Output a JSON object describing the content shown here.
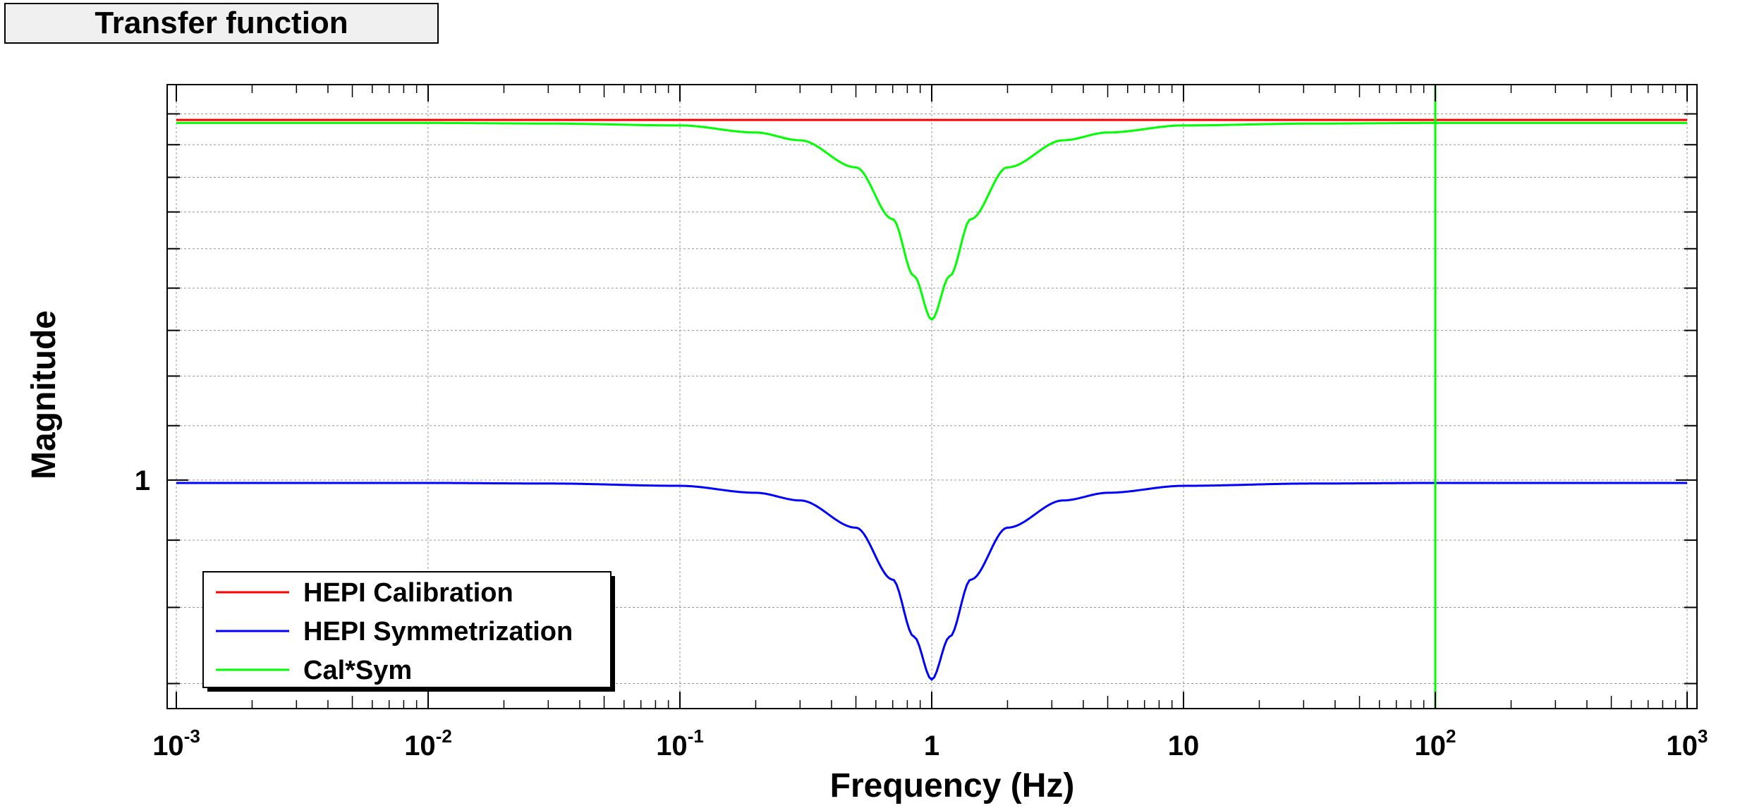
{
  "title": "Transfer function",
  "chart_data": {
    "type": "line",
    "title": "Transfer function",
    "xlabel": "Frequency (Hz)",
    "ylabel": "Magnitude",
    "xscale": "log",
    "yscale": "log",
    "xlim": [
      0.001,
      1000
    ],
    "ylim": [
      0.67,
      2.0
    ],
    "x_ticks": [
      {
        "value": 0.001,
        "base": "10",
        "exp": "-3"
      },
      {
        "value": 0.01,
        "base": "10",
        "exp": "-2"
      },
      {
        "value": 0.1,
        "base": "10",
        "exp": "-1"
      },
      {
        "value": 1,
        "base": "1",
        "exp": ""
      },
      {
        "value": 10,
        "base": "10",
        "exp": ""
      },
      {
        "value": 100,
        "base": "10",
        "exp": "2"
      },
      {
        "value": 1000,
        "base": "10",
        "exp": "3"
      }
    ],
    "y_ticks": [
      {
        "value": 1,
        "label": "1"
      }
    ],
    "grid": true,
    "legend_position": "bottom-left",
    "series": [
      {
        "name": "HEPI Calibration",
        "color": "#ff0000",
        "x": [
          0.001,
          0.01,
          0.1,
          1,
          10,
          100,
          1000
        ],
        "y": [
          1.88,
          1.88,
          1.88,
          1.88,
          1.88,
          1.88,
          1.88
        ]
      },
      {
        "name": "HEPI Symmetrization",
        "color": "#0000ff",
        "x": [
          0.001,
          0.01,
          0.03,
          0.1,
          0.2,
          0.3,
          0.5,
          0.7,
          0.85,
          1,
          1.18,
          1.43,
          2,
          3.33,
          5,
          10,
          33,
          100,
          1000
        ],
        "y": [
          0.995,
          0.995,
          0.994,
          0.99,
          0.978,
          0.965,
          0.92,
          0.84,
          0.76,
          0.705,
          0.76,
          0.84,
          0.92,
          0.965,
          0.978,
          0.99,
          0.994,
          0.995,
          0.995
        ]
      },
      {
        "name": "Cal*Sym",
        "color": "#00ff00",
        "x": [
          0.001,
          0.01,
          0.03,
          0.1,
          0.2,
          0.3,
          0.5,
          0.7,
          0.85,
          1,
          1.18,
          1.43,
          2,
          3.33,
          5,
          10,
          33,
          100,
          1000
        ],
        "y": [
          1.87,
          1.87,
          1.868,
          1.862,
          1.839,
          1.814,
          1.73,
          1.58,
          1.43,
          1.325,
          1.43,
          1.58,
          1.73,
          1.814,
          1.839,
          1.862,
          1.868,
          1.87,
          1.87
        ]
      },
      {
        "name": "",
        "color": "#00ff00",
        "vertical_line_x": 100
      }
    ]
  },
  "colors": {
    "grid": "#999999",
    "frame": "#000000",
    "title_background": "#f0f0f0"
  }
}
